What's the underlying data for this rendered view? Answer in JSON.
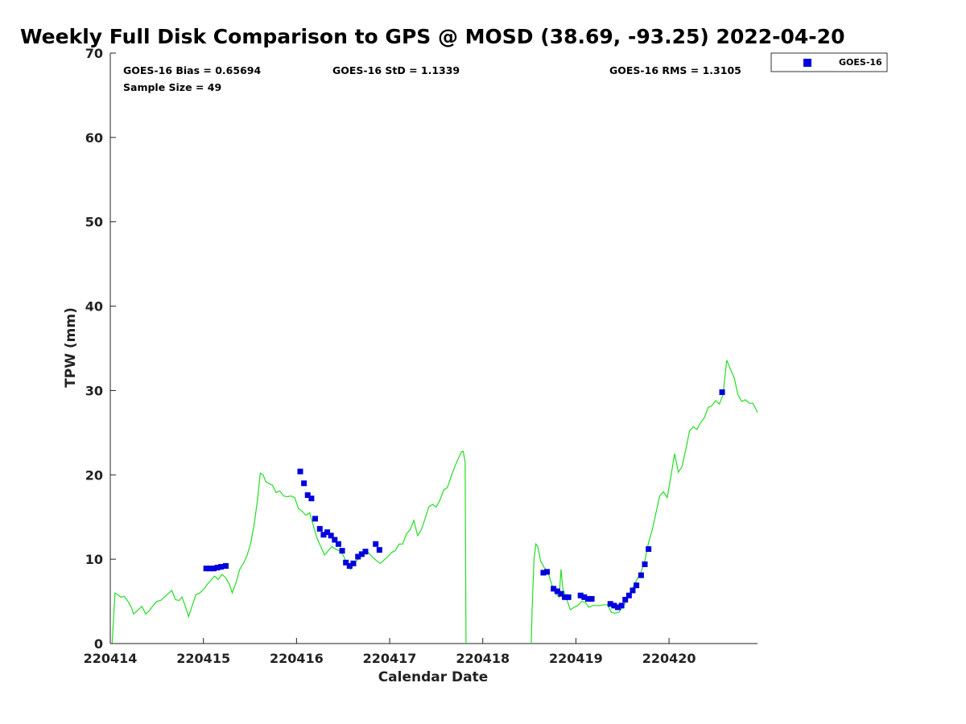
{
  "chart_data": {
    "type": "scatter",
    "title": "Weekly Full Disk Comparison to GPS @ MOSD (38.69, -93.25) 2022-04-20",
    "xlabel": "Calendar Date",
    "ylabel": "TPW (mm)",
    "xlim": [
      0,
      6.95
    ],
    "ylim": [
      0,
      70
    ],
    "x_ticks": [
      {
        "x": 0,
        "label": "220414"
      },
      {
        "x": 1,
        "label": "220415"
      },
      {
        "x": 2,
        "label": "220416"
      },
      {
        "x": 3,
        "label": "220417"
      },
      {
        "x": 4,
        "label": "220418"
      },
      {
        "x": 5,
        "label": "220419"
      },
      {
        "x": 6,
        "label": "220420"
      }
    ],
    "y_ticks": [
      0,
      10,
      20,
      30,
      40,
      50,
      60,
      70
    ],
    "grid": false,
    "legend_position": "top-right-outside",
    "stats": {
      "bias": "GOES-16 Bias = 0.65694",
      "std": "GOES-16 StD = 1.1339",
      "rms": "GOES-16 RMS = 1.3105",
      "sample": "Sample Size = 49"
    },
    "series": [
      {
        "name": "GOES-16",
        "type": "scatter",
        "color": "#0000dd",
        "marker": "square",
        "points": [
          [
            1.03,
            8.9
          ],
          [
            1.07,
            8.9
          ],
          [
            1.11,
            8.9
          ],
          [
            1.15,
            9.0
          ],
          [
            1.19,
            9.1
          ],
          [
            1.24,
            9.2
          ],
          [
            2.04,
            20.4
          ],
          [
            2.08,
            19.0
          ],
          [
            2.12,
            17.6
          ],
          [
            2.16,
            17.2
          ],
          [
            2.2,
            14.8
          ],
          [
            2.25,
            13.6
          ],
          [
            2.29,
            12.9
          ],
          [
            2.33,
            13.2
          ],
          [
            2.37,
            12.8
          ],
          [
            2.41,
            12.3
          ],
          [
            2.45,
            11.8
          ],
          [
            2.49,
            11.0
          ],
          [
            2.53,
            9.6
          ],
          [
            2.57,
            9.2
          ],
          [
            2.61,
            9.5
          ],
          [
            2.66,
            10.3
          ],
          [
            2.7,
            10.6
          ],
          [
            2.74,
            10.9
          ],
          [
            2.85,
            11.8
          ],
          [
            2.89,
            11.1
          ],
          [
            4.65,
            8.4
          ],
          [
            4.69,
            8.5
          ],
          [
            4.76,
            6.5
          ],
          [
            4.8,
            6.2
          ],
          [
            4.84,
            5.9
          ],
          [
            4.88,
            5.5
          ],
          [
            4.92,
            5.5
          ],
          [
            5.05,
            5.7
          ],
          [
            5.09,
            5.5
          ],
          [
            5.13,
            5.3
          ],
          [
            5.17,
            5.3
          ],
          [
            5.37,
            4.7
          ],
          [
            5.41,
            4.5
          ],
          [
            5.45,
            4.3
          ],
          [
            5.49,
            4.5
          ],
          [
            5.53,
            5.2
          ],
          [
            5.57,
            5.7
          ],
          [
            5.61,
            6.3
          ],
          [
            5.65,
            6.9
          ],
          [
            5.7,
            8.1
          ],
          [
            5.74,
            9.4
          ],
          [
            5.78,
            11.2
          ],
          [
            6.57,
            29.8
          ]
        ]
      },
      {
        "name": "GPS",
        "type": "line",
        "color": "#22dd22",
        "segments": [
          [
            [
              0.02,
              0
            ],
            [
              0.05,
              6.0
            ],
            [
              0.08,
              5.8
            ],
            [
              0.11,
              5.5
            ],
            [
              0.15,
              5.6
            ],
            [
              0.19,
              5.0
            ],
            [
              0.23,
              4.2
            ],
            [
              0.25,
              3.5
            ],
            [
              0.29,
              3.9
            ],
            [
              0.34,
              4.4
            ],
            [
              0.38,
              3.5
            ],
            [
              0.42,
              3.9
            ],
            [
              0.46,
              4.5
            ],
            [
              0.5,
              5.0
            ],
            [
              0.54,
              5.1
            ],
            [
              0.58,
              5.5
            ],
            [
              0.62,
              5.9
            ],
            [
              0.66,
              6.3
            ],
            [
              0.7,
              5.2
            ],
            [
              0.74,
              5.1
            ],
            [
              0.77,
              5.5
            ],
            [
              0.81,
              4.3
            ],
            [
              0.84,
              3.2
            ],
            [
              0.88,
              4.5
            ],
            [
              0.92,
              5.8
            ],
            [
              0.96,
              6.0
            ],
            [
              1.0,
              6.4
            ],
            [
              1.04,
              7.0
            ],
            [
              1.08,
              7.5
            ],
            [
              1.12,
              8.0
            ],
            [
              1.16,
              7.6
            ],
            [
              1.2,
              8.2
            ],
            [
              1.24,
              7.8
            ],
            [
              1.28,
              7.0
            ],
            [
              1.31,
              6.0
            ],
            [
              1.35,
              7.2
            ],
            [
              1.39,
              8.8
            ],
            [
              1.43,
              9.5
            ],
            [
              1.47,
              10.5
            ],
            [
              1.51,
              12.0
            ],
            [
              1.55,
              14.5
            ],
            [
              1.58,
              17.0
            ],
            [
              1.61,
              20.2
            ],
            [
              1.64,
              20.0
            ],
            [
              1.67,
              19.2
            ],
            [
              1.7,
              19.0
            ],
            [
              1.74,
              18.8
            ],
            [
              1.78,
              17.9
            ],
            [
              1.82,
              18.1
            ],
            [
              1.86,
              17.5
            ],
            [
              1.9,
              17.4
            ],
            [
              1.94,
              17.5
            ],
            [
              1.98,
              17.3
            ],
            [
              2.02,
              16.0
            ],
            [
              2.06,
              15.7
            ],
            [
              2.1,
              15.2
            ],
            [
              2.14,
              15.5
            ],
            [
              2.18,
              14.0
            ],
            [
              2.22,
              12.5
            ],
            [
              2.26,
              11.5
            ],
            [
              2.3,
              10.5
            ],
            [
              2.34,
              11.0
            ],
            [
              2.38,
              11.5
            ],
            [
              2.42,
              11.2
            ],
            [
              2.46,
              11.0
            ],
            [
              2.5,
              10.5
            ],
            [
              2.54,
              9.5
            ],
            [
              2.58,
              8.8
            ],
            [
              2.62,
              9.5
            ],
            [
              2.66,
              10.0
            ],
            [
              2.7,
              10.5
            ],
            [
              2.74,
              11.0
            ],
            [
              2.78,
              10.7
            ],
            [
              2.82,
              10.2
            ],
            [
              2.86,
              9.8
            ],
            [
              2.9,
              9.5
            ],
            [
              2.94,
              9.9
            ],
            [
              2.98,
              10.3
            ],
            [
              3.02,
              10.8
            ],
            [
              3.06,
              11.0
            ],
            [
              3.1,
              11.8
            ],
            [
              3.14,
              11.8
            ],
            [
              3.18,
              13.0
            ],
            [
              3.22,
              13.5
            ],
            [
              3.26,
              14.6
            ],
            [
              3.3,
              12.8
            ],
            [
              3.34,
              13.5
            ],
            [
              3.38,
              14.8
            ],
            [
              3.42,
              16.2
            ],
            [
              3.46,
              16.5
            ],
            [
              3.5,
              16.2
            ],
            [
              3.54,
              17.0
            ],
            [
              3.58,
              18.2
            ],
            [
              3.62,
              18.5
            ],
            [
              3.66,
              19.8
            ],
            [
              3.7,
              21.0
            ],
            [
              3.74,
              22.0
            ],
            [
              3.77,
              22.7
            ],
            [
              3.79,
              22.8
            ],
            [
              3.81,
              21.5
            ],
            [
              3.82,
              0
            ]
          ],
          [
            [
              4.52,
              0
            ],
            [
              4.53,
              4.0
            ],
            [
              4.55,
              10.0
            ],
            [
              4.57,
              11.8
            ],
            [
              4.59,
              11.5
            ],
            [
              4.62,
              9.8
            ],
            [
              4.66,
              9.0
            ],
            [
              4.7,
              8.5
            ],
            [
              4.74,
              7.0
            ],
            [
              4.78,
              6.0
            ],
            [
              4.82,
              5.5
            ],
            [
              4.84,
              8.8
            ],
            [
              4.86,
              6.5
            ],
            [
              4.9,
              5.3
            ],
            [
              4.94,
              4.0
            ],
            [
              4.98,
              4.3
            ],
            [
              5.02,
              4.5
            ],
            [
              5.06,
              5.0
            ],
            [
              5.1,
              4.9
            ],
            [
              5.14,
              4.3
            ],
            [
              5.18,
              4.5
            ],
            [
              5.22,
              4.5
            ],
            [
              5.26,
              4.5
            ],
            [
              5.3,
              4.6
            ],
            [
              5.34,
              4.6
            ],
            [
              5.38,
              3.7
            ],
            [
              5.42,
              3.6
            ],
            [
              5.46,
              3.7
            ],
            [
              5.5,
              4.3
            ],
            [
              5.54,
              5.0
            ],
            [
              5.58,
              6.0
            ],
            [
              5.62,
              6.8
            ],
            [
              5.66,
              7.7
            ],
            [
              5.7,
              8.5
            ],
            [
              5.74,
              9.8
            ],
            [
              5.78,
              12.0
            ],
            [
              5.82,
              13.5
            ],
            [
              5.86,
              15.5
            ],
            [
              5.9,
              17.5
            ],
            [
              5.94,
              18.0
            ],
            [
              5.98,
              17.3
            ],
            [
              6.02,
              19.8
            ],
            [
              6.06,
              22.5
            ],
            [
              6.1,
              20.3
            ],
            [
              6.14,
              21.0
            ],
            [
              6.18,
              23.0
            ],
            [
              6.22,
              25.2
            ],
            [
              6.26,
              25.7
            ],
            [
              6.3,
              25.4
            ],
            [
              6.34,
              26.2
            ],
            [
              6.38,
              26.8
            ],
            [
              6.42,
              28.0
            ],
            [
              6.46,
              28.2
            ],
            [
              6.5,
              28.8
            ],
            [
              6.54,
              28.4
            ],
            [
              6.58,
              29.5
            ],
            [
              6.62,
              33.6
            ],
            [
              6.66,
              32.5
            ],
            [
              6.7,
              31.5
            ],
            [
              6.74,
              29.5
            ],
            [
              6.78,
              28.7
            ],
            [
              6.82,
              28.9
            ],
            [
              6.86,
              28.5
            ],
            [
              6.9,
              28.5
            ],
            [
              6.95,
              27.4
            ]
          ]
        ]
      }
    ],
    "legend": [
      {
        "label": "GOES-16",
        "color": "#0000dd",
        "marker": "square"
      }
    ]
  }
}
